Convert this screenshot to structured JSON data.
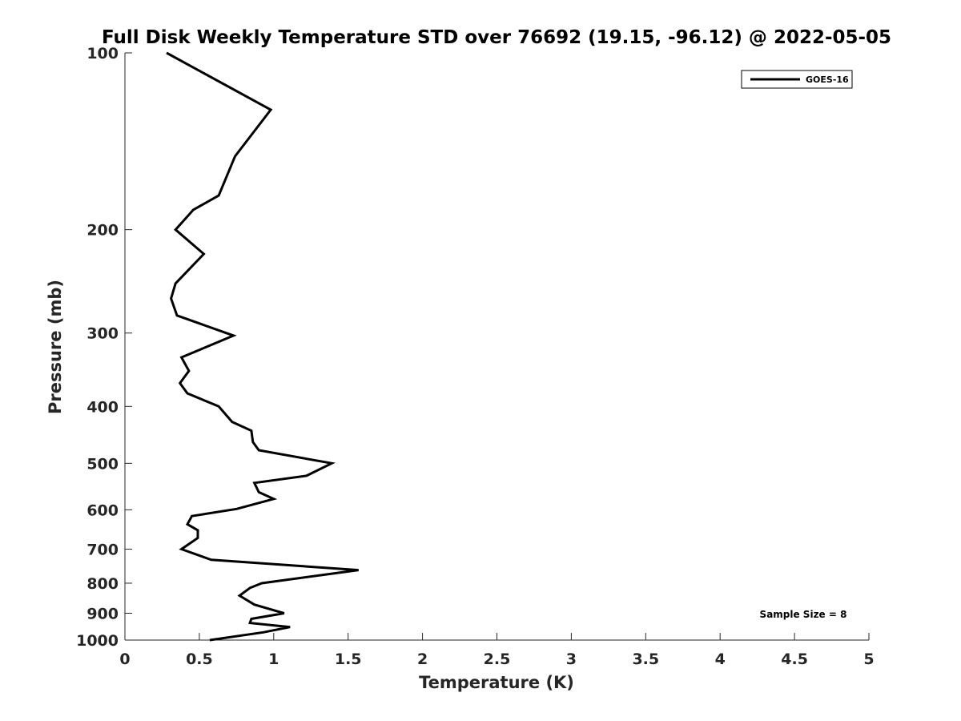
{
  "chart_data": {
    "type": "line",
    "title": "Full Disk Weekly Temperature STD over 76692 (19.15, -96.12) @ 2022-05-05",
    "xlabel": "Temperature (K)",
    "ylabel": "Pressure (mb)",
    "xlim": [
      0,
      5
    ],
    "ylim": [
      100,
      1000
    ],
    "y_scale": "log",
    "y_reversed": true,
    "x_ticks": [
      "0",
      "0.5",
      "1",
      "1.5",
      "2",
      "2.5",
      "3",
      "3.5",
      "4",
      "4.5",
      "5"
    ],
    "y_ticks": [
      "100",
      "200",
      "300",
      "400",
      "500",
      "600",
      "700",
      "800",
      "900",
      "1000"
    ],
    "grid": false,
    "legend_position": "top-right",
    "series": [
      {
        "name": "GOES-16",
        "color": "#000000",
        "points": [
          [
            0.28,
            100
          ],
          [
            0.98,
            125
          ],
          [
            0.74,
            150
          ],
          [
            0.63,
            175
          ],
          [
            0.46,
            185
          ],
          [
            0.34,
            200
          ],
          [
            0.53,
            220
          ],
          [
            0.34,
            247
          ],
          [
            0.31,
            262
          ],
          [
            0.35,
            280
          ],
          [
            0.73,
            303
          ],
          [
            0.38,
            330
          ],
          [
            0.43,
            348
          ],
          [
            0.37,
            365
          ],
          [
            0.42,
            380
          ],
          [
            0.63,
            400
          ],
          [
            0.72,
            425
          ],
          [
            0.85,
            440
          ],
          [
            0.86,
            460
          ],
          [
            0.9,
            475
          ],
          [
            1.39,
            500
          ],
          [
            1.22,
            525
          ],
          [
            0.87,
            540
          ],
          [
            0.9,
            560
          ],
          [
            1.0,
            575
          ],
          [
            0.75,
            598
          ],
          [
            0.45,
            615
          ],
          [
            0.42,
            635
          ],
          [
            0.49,
            650
          ],
          [
            0.49,
            670
          ],
          [
            0.38,
            700
          ],
          [
            0.58,
            730
          ],
          [
            1.57,
            760
          ],
          [
            0.92,
            800
          ],
          [
            0.84,
            815
          ],
          [
            0.77,
            840
          ],
          [
            0.87,
            870
          ],
          [
            1.07,
            900
          ],
          [
            0.85,
            920
          ],
          [
            0.84,
            935
          ],
          [
            1.11,
            950
          ],
          [
            0.93,
            970
          ],
          [
            0.57,
            1000
          ]
        ]
      }
    ],
    "annotations": [
      "Sample Size = 8"
    ]
  }
}
